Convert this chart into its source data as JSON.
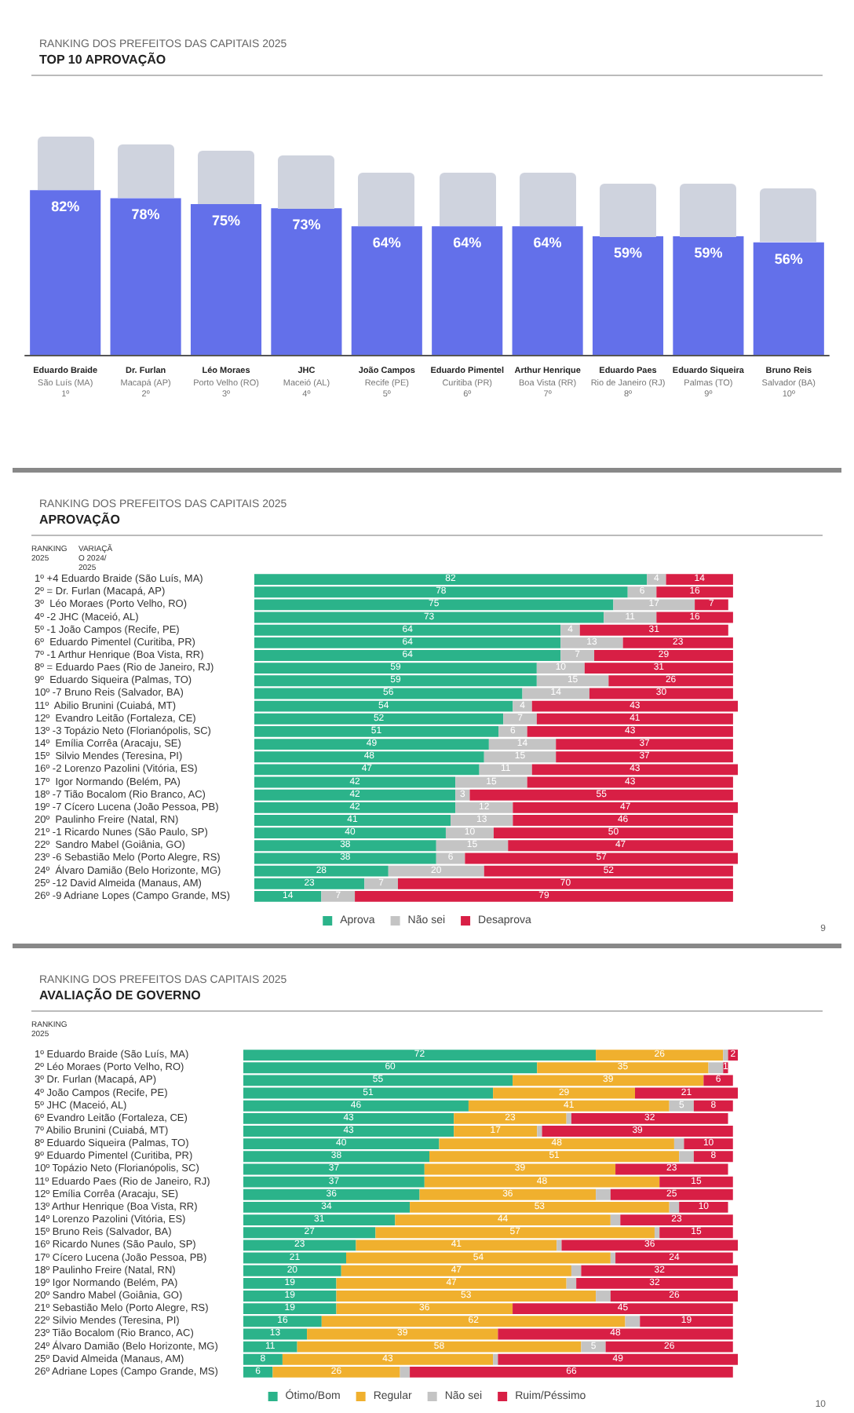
{
  "chart_data": [
    {
      "type": "bar",
      "title": "RANKING DOS PREFEITOS DAS CAPITAIS 2025",
      "subtitle": "TOP 10 APROVAÇÃO",
      "categories": [
        "Eduardo Braide\nSão Luís (MA)\n1º",
        "Dr. Furlan\nMacapá (AP)\n2º",
        "Léo Moraes\nPorto Velho (RO)\n3º",
        "JHC\nMaceió (AL)\n4º",
        "João Campos\nRecife (PE)\n5º",
        "Eduardo Pimentel\nCuritiba (PR)\n6º",
        "Arthur Henrique\nBoa Vista (RR)\n7º",
        "Eduardo Paes\nRio de Janeiro (RJ)\n8º",
        "Eduardo Siqueira\nPalmas (TO)\n9º",
        "Bruno Reis\nSalvador (BA)\n10º"
      ],
      "values": [
        82,
        78,
        75,
        73,
        64,
        64,
        64,
        59,
        59,
        56
      ],
      "color": "#6370ea",
      "value_labels": [
        "82%",
        "78%",
        "75%",
        "73%",
        "64%",
        "64%",
        "64%",
        "59%",
        "59%",
        "56%"
      ],
      "tick_labels": "x"
    },
    {
      "type": "bar",
      "orientation": "horizontal",
      "stacked": true,
      "title": "RANKING DOS PREFEITOS DAS CAPITAIS 2025",
      "subtitle": "APROVAÇÃO",
      "annotations": [
        "RANKING 2025",
        "VARIAÇÃO 2024/2025",
        "9"
      ],
      "categories": [
        "1º\t+4\tEduardo Braide (São Luís, MA)",
        "2º\t=\tDr. Furlan (Macapá, AP)",
        "3º\t\tLéo Moraes (Porto Velho, RO)",
        "4º\t-2\tJHC (Maceió, AL)",
        "5º\t-1\tJoão Campos (Recife, PE)",
        "6º\t\tEduardo Pimentel (Curitiba, PR)",
        "7º\t-1\tArthur Henrique (Boa Vista, RR)",
        "8º\t=\tEduardo Paes (Rio de Janeiro, RJ)",
        "9º\t\tEduardo Siqueira (Palmas, TO)",
        "10º\t-7\tBruno Reis (Salvador, BA)",
        "11º\t\tAbilio Brunini (Cuiabá, MT)",
        "12º\t\tEvandro Leitão (Fortaleza, CE)",
        "13º\t-3\tTopázio Neto (Florianópolis, SC)",
        "14º\t\tEmília Corrêa (Aracaju, SE)",
        "15º\t\tSilvio Mendes (Teresina, PI)",
        "16º\t-2\tLorenzo Pazolini (Vitória, ES)",
        "17º\t\tIgor Normando (Belém, PA)",
        "18º\t-7\tTião Bocalom (Rio Branco, AC)",
        "19º\t-7\tCícero Lucena (João Pessoa, PB)",
        "20º\t\tPaulinho Freire (Natal, RN)",
        "21º\t-1\tRicardo Nunes (São Paulo, SP)",
        "22º\t\tSandro Mabel (Goiânia, GO)",
        "23º\t-6\tSebastião Melo (Porto Alegre, RS)",
        "24º\t\tÁlvaro Damião (Belo Horizonte, MG)",
        "25º\t-12\tDavid Almeida (Manaus, AM)",
        "26º\t-9\tAdriane Lopes (Campo Grande, MS)"
      ],
      "series": [
        {
          "name": "Aprova",
          "color": "#2bb38a",
          "values": [
            82,
            78,
            75,
            73,
            64,
            64,
            64,
            59,
            59,
            56,
            54,
            52,
            51,
            49,
            48,
            47,
            42,
            42,
            42,
            41,
            40,
            38,
            38,
            28,
            23,
            14
          ]
        },
        {
          "name": "Não sei",
          "color": "#c4c4c4",
          "values": [
            4,
            6,
            17,
            11,
            4,
            13,
            7,
            10,
            15,
            14,
            4,
            7,
            6,
            14,
            15,
            11,
            15,
            3,
            12,
            13,
            10,
            15,
            6,
            20,
            7,
            7
          ]
        },
        {
          "name": "Desaprova",
          "color": "#d81f45",
          "values": [
            14,
            16,
            7,
            16,
            31,
            23,
            29,
            31,
            26,
            30,
            43,
            41,
            43,
            37,
            37,
            43,
            43,
            55,
            47,
            46,
            50,
            47,
            57,
            52,
            70,
            79
          ]
        }
      ],
      "data_labels": true,
      "legend": "bottom",
      "tick_labels": "y"
    },
    {
      "type": "bar",
      "orientation": "horizontal",
      "stacked": true,
      "title": "RANKING DOS PREFEITOS DAS CAPITAIS 2025",
      "subtitle": "AVALIAÇÃO DE GOVERNO",
      "annotations": [
        "RANKING 2025",
        "10"
      ],
      "categories": [
        "1º\tEduardo Braide (São Luís, MA)",
        "2º\tLéo Moraes (Porto Velho, RO)",
        "3º\tDr. Furlan (Macapá, AP)",
        "4º\tJoão Campos (Recife, PE)",
        "5º\tJHC (Maceió, AL)",
        "6º\tEvandro Leitão (Fortaleza, CE)",
        "7º\tAbilio Brunini (Cuiabá, MT)",
        "8º\tEduardo Siqueira (Palmas, TO)",
        "9º\tEduardo Pimentel (Curitiba, PR)",
        "10º\tTopázio Neto (Florianópolis, SC)",
        "11º\tEduardo Paes (Rio de Janeiro, RJ)",
        "12º\tEmília Corrêa (Aracaju, SE)",
        "13º\tArthur Henrique (Boa Vista, RR)",
        "14º\tLorenzo Pazolini (Vitória, ES)",
        "15º\tBruno Reis (Salvador, BA)",
        "16º\tRicardo Nunes (São Paulo, SP)",
        "17º\tCícero Lucena (João Pessoa, PB)",
        "18º\tPaulinho Freire (Natal, RN)",
        "19º\tIgor Normando (Belém, PA)",
        "20º\tSandro Mabel (Goiânia, GO)",
        "21º\tSebastião Melo (Porto Alegre, RS)",
        "22º\tSilvio Mendes (Teresina, PI)",
        "23º\tTião Bocalom (Rio Branco, AC)",
        "24º\tÁlvaro Damião (Belo Horizonte, MG)",
        "25º\tDavid Almeida (Manaus, AM)",
        "26º\tAdriane Lopes (Campo Grande, MS)"
      ],
      "series": [
        {
          "name": "Ótimo/Bom",
          "color": "#2bb38a",
          "values": [
            72,
            60,
            55,
            51,
            46,
            43,
            43,
            40,
            38,
            37,
            37,
            36,
            34,
            31,
            27,
            23,
            21,
            20,
            19,
            19,
            19,
            16,
            13,
            11,
            8,
            6
          ],
          "value_labels": [
            "72",
            "60",
            "55",
            "51",
            "46",
            "43",
            "43",
            "40",
            "38",
            "37",
            "37",
            "36",
            "34",
            "31",
            "27",
            "23",
            "21",
            "20",
            "19",
            "19",
            "19",
            "16",
            "13",
            "11",
            "8",
            "6"
          ]
        },
        {
          "name": "Regular",
          "color": "#f0b02e",
          "values": [
            26,
            35,
            39,
            29,
            41,
            23,
            17,
            48,
            51,
            39,
            48,
            36,
            53,
            44,
            57,
            41,
            54,
            47,
            47,
            53,
            36,
            62,
            39,
            58,
            43,
            26
          ],
          "value_labels": [
            "26",
            "35",
            "39",
            "29",
            "41",
            "23",
            "17",
            "48",
            "51",
            "39",
            "48",
            "36",
            "53",
            "44",
            "57",
            "41",
            "54",
            "47",
            "47",
            "53",
            "36",
            "62",
            "39",
            "58",
            "43",
            "26"
          ]
        },
        {
          "name": "Não sei",
          "color": "#c4c4c4",
          "values": [
            1,
            3,
            null,
            null,
            5,
            1,
            1,
            2,
            3,
            null,
            null,
            3,
            2,
            2,
            1,
            1,
            1,
            2,
            2,
            3,
            null,
            3,
            null,
            5,
            1,
            2
          ],
          "value_labels": [
            null,
            null,
            null,
            null,
            "5",
            null,
            null,
            null,
            null,
            null,
            null,
            null,
            null,
            null,
            null,
            null,
            null,
            null,
            null,
            null,
            null,
            null,
            null,
            "5",
            null,
            null
          ]
        },
        {
          "name": "Ruim/Péssimo",
          "color": "#d81f45",
          "values": [
            2,
            1,
            6,
            21,
            8,
            32,
            39,
            10,
            8,
            23,
            15,
            25,
            10,
            23,
            15,
            36,
            24,
            32,
            32,
            26,
            45,
            19,
            48,
            26,
            49,
            66
          ],
          "value_labels": [
            "2",
            "1",
            "6",
            "21",
            "8",
            "32",
            "39",
            "10",
            "8",
            "23",
            "15",
            "25",
            "10",
            "23",
            "15",
            "36",
            "24",
            "32",
            "32",
            "26",
            "45",
            "19",
            "48",
            "26",
            "49",
            "66"
          ]
        }
      ],
      "legend": "bottom",
      "tick_labels": "y"
    }
  ]
}
